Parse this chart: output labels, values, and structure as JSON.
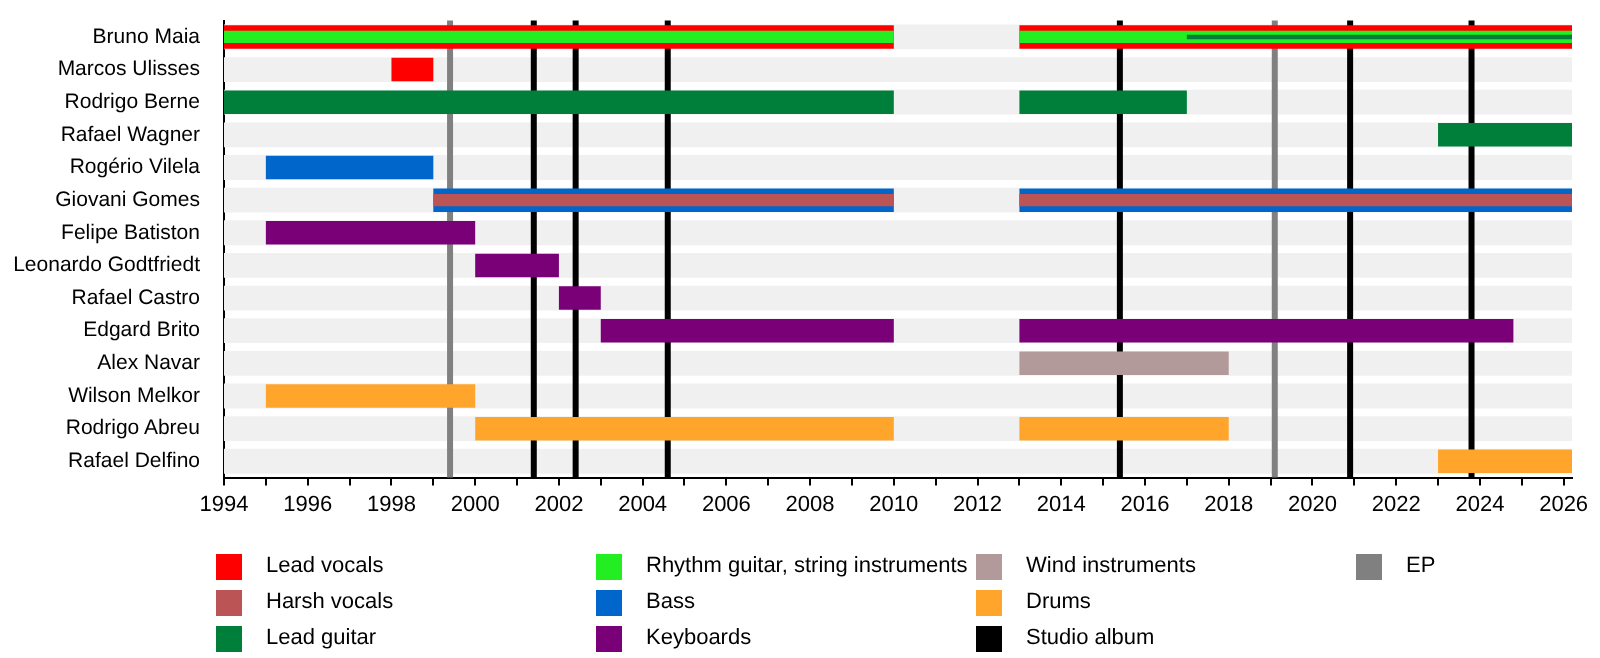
{
  "chart_data": {
    "type": "bar",
    "orientation": "horizontal",
    "legend": "bottom",
    "categories": [
      "Bruno Maia",
      "Marcos Ulisses",
      "Rodrigo Berne",
      "Rafael Wagner",
      "Rogério Vilela",
      "Giovani Gomes",
      "Felipe Batiston",
      "Leonardo Godtfriedt",
      "Rafael Castro",
      "Edgard Brito",
      "Alex Navar",
      "Wilson Melkor",
      "Rodrigo Abreu",
      "Rafael Delfino"
    ],
    "xlim": [
      1994,
      2026.2
    ],
    "xticks": [
      1994,
      {
        "value": 1995,
        "label": null
      },
      1996,
      {
        "value": 1997,
        "label": null
      },
      1998,
      {
        "value": 1999,
        "label": null
      },
      2000,
      {
        "value": 2001,
        "label": null
      },
      2002,
      {
        "value": 2003,
        "label": null
      },
      2004,
      {
        "value": 2005,
        "label": null
      },
      2006,
      {
        "value": 2007,
        "label": null
      },
      2008,
      {
        "value": 2009,
        "label": null
      },
      2010,
      {
        "value": 2011,
        "label": null
      },
      2012,
      {
        "value": 2013,
        "label": null
      },
      2014,
      {
        "value": 2015,
        "label": null
      },
      2016,
      {
        "value": 2017,
        "label": null
      },
      2018,
      {
        "value": 2019,
        "label": null
      },
      2020,
      {
        "value": 2021,
        "label": null
      },
      2022,
      {
        "value": 2023,
        "label": null
      },
      2024,
      {
        "value": 2025,
        "label": null
      },
      2026
    ],
    "series": [
      {
        "name": "Lead vocals",
        "color": "#ff0000",
        "values": [
          16,
          1,
          null,
          null,
          null,
          null,
          null,
          null,
          null,
          null,
          null,
          null,
          null,
          null
        ],
        "base": [
          1994,
          1998,
          null,
          null,
          null,
          null,
          null,
          null,
          null,
          null,
          null,
          null,
          null,
          null
        ]
      },
      {
        "color": "#ff0000",
        "values": [
          13.2,
          null,
          null,
          null,
          null,
          null,
          null,
          null,
          null,
          null,
          null,
          null,
          null,
          null
        ],
        "base": [
          2013,
          null,
          null,
          null,
          null,
          null,
          null,
          null,
          null,
          null,
          null,
          null,
          null,
          null
        ]
      },
      {
        "color": "#0066cc",
        "values": [
          null,
          null,
          null,
          null,
          null,
          11,
          null,
          null,
          null,
          null,
          null,
          null,
          null,
          null
        ],
        "base": [
          null,
          null,
          null,
          null,
          null,
          1999,
          null,
          null,
          null,
          null,
          null,
          null,
          null,
          null
        ]
      },
      {
        "color": "#0066cc",
        "values": [
          null,
          null,
          null,
          null,
          null,
          13.2,
          null,
          null,
          null,
          null,
          null,
          null,
          null,
          null
        ],
        "base": [
          null,
          null,
          null,
          null,
          null,
          2013,
          null,
          null,
          null,
          null,
          null,
          null,
          null,
          null
        ]
      },
      {
        "name": "Harsh vocals",
        "color": "#bb5555",
        "values": [
          null,
          null,
          null,
          null,
          null,
          11,
          null,
          null,
          null,
          null,
          null,
          null,
          null,
          null
        ],
        "base": [
          null,
          null,
          null,
          null,
          null,
          1999,
          null,
          null,
          null,
          null,
          null,
          null,
          null,
          null
        ]
      },
      {
        "color": "#bb5555",
        "values": [
          null,
          null,
          null,
          null,
          null,
          13.2,
          null,
          null,
          null,
          null,
          null,
          null,
          null,
          null
        ],
        "base": [
          null,
          null,
          null,
          null,
          null,
          2013,
          null,
          null,
          null,
          null,
          null,
          null,
          null,
          null
        ]
      },
      {
        "name": "Lead guitar",
        "color": "#007f3a",
        "values": [
          null,
          null,
          16,
          3.2,
          null,
          null,
          null,
          null,
          null,
          null,
          null,
          null,
          null,
          null
        ],
        "base": [
          null,
          null,
          1994,
          2023,
          null,
          null,
          null,
          null,
          null,
          null,
          null,
          null,
          null,
          null
        ]
      },
      {
        "color": "#007f3a",
        "values": [
          null,
          null,
          4,
          null,
          null,
          null,
          null,
          null,
          null,
          null,
          null,
          null,
          null,
          null
        ],
        "base": [
          null,
          null,
          2013,
          null,
          null,
          null,
          null,
          null,
          null,
          null,
          null,
          null,
          null,
          null
        ]
      },
      {
        "name": "Rhythm guitar, string instruments",
        "color": "#22ee22",
        "values": [
          16,
          null,
          null,
          null,
          null,
          null,
          null,
          null,
          null,
          null,
          null,
          null,
          null,
          null
        ],
        "base": [
          1994,
          null,
          null,
          null,
          null,
          null,
          null,
          null,
          null,
          null,
          null,
          null,
          null,
          null
        ]
      },
      {
        "color": "#22ee22",
        "values": [
          13.2,
          null,
          null,
          null,
          null,
          null,
          null,
          null,
          null,
          null,
          null,
          null,
          null,
          null
        ],
        "base": [
          2013,
          null,
          null,
          null,
          null,
          null,
          null,
          null,
          null,
          null,
          null,
          null,
          null,
          null
        ]
      },
      {
        "name": "Bass",
        "color": "#0066cc",
        "values": [
          null,
          null,
          null,
          null,
          4,
          null,
          null,
          null,
          null,
          null,
          null,
          null,
          null,
          null
        ],
        "base": [
          null,
          null,
          null,
          null,
          1995,
          null,
          null,
          null,
          null,
          null,
          null,
          null,
          null,
          null
        ]
      },
      {
        "name": "Keyboards",
        "color": "#7a0077",
        "values": [
          null,
          null,
          null,
          null,
          null,
          null,
          5,
          2,
          1,
          7,
          null,
          null,
          null,
          null
        ],
        "base": [
          null,
          null,
          null,
          null,
          null,
          null,
          1995,
          2000,
          2002,
          2003,
          null,
          null,
          null,
          null
        ]
      },
      {
        "color": "#7a0077",
        "values": [
          null,
          null,
          null,
          null,
          null,
          null,
          null,
          null,
          null,
          11.8,
          null,
          null,
          null,
          null
        ],
        "base": [
          null,
          null,
          null,
          null,
          null,
          null,
          null,
          null,
          null,
          2013,
          null,
          null,
          null,
          null
        ]
      },
      {
        "name": "Wind instruments",
        "color": "#b39a9a",
        "values": [
          null,
          null,
          null,
          null,
          null,
          null,
          null,
          null,
          null,
          null,
          5,
          null,
          null,
          null
        ],
        "base": [
          null,
          null,
          null,
          null,
          null,
          null,
          null,
          null,
          null,
          null,
          2013,
          null,
          null,
          null
        ]
      },
      {
        "name": "Drums",
        "color": "#ffa52c",
        "values": [
          null,
          null,
          null,
          null,
          null,
          null,
          null,
          null,
          null,
          null,
          null,
          5,
          10,
          3.2
        ],
        "base": [
          null,
          null,
          null,
          null,
          null,
          null,
          null,
          null,
          null,
          null,
          null,
          1995,
          2000,
          2023
        ]
      },
      {
        "color": "#ffa52c",
        "values": [
          null,
          null,
          null,
          null,
          null,
          null,
          null,
          null,
          null,
          null,
          null,
          null,
          5,
          null
        ],
        "base": [
          null,
          null,
          null,
          null,
          null,
          null,
          null,
          null,
          null,
          null,
          null,
          null,
          2013,
          null
        ]
      },
      {
        "color": "#007f3a",
        "values": [
          9.2,
          null,
          null,
          null,
          null,
          null,
          null,
          null,
          null,
          null,
          null,
          null,
          null,
          null
        ],
        "base": [
          2017,
          null,
          null,
          null,
          null,
          null,
          null,
          null,
          null,
          null,
          null,
          null,
          null,
          null
        ]
      }
    ],
    "ref_lines": [
      {
        "axis": "x",
        "value": 2001.4,
        "label": "Studio album",
        "color": "#000000"
      },
      {
        "axis": "x",
        "value": 1999.4,
        "label": "EP",
        "color": "#808080"
      },
      {
        "axis": "x",
        "value": 2002.4,
        "color": "#000000"
      },
      {
        "axis": "x",
        "value": 2004.6,
        "color": "#000000"
      },
      {
        "axis": "x",
        "value": 2015.4,
        "color": "#000000"
      },
      {
        "axis": "x",
        "value": 2019.1,
        "color": "#808080"
      },
      {
        "axis": "x",
        "value": 2020.9,
        "color": "#000000"
      },
      {
        "axis": "x",
        "value": 2023.8,
        "color": "#000000"
      }
    ]
  }
}
